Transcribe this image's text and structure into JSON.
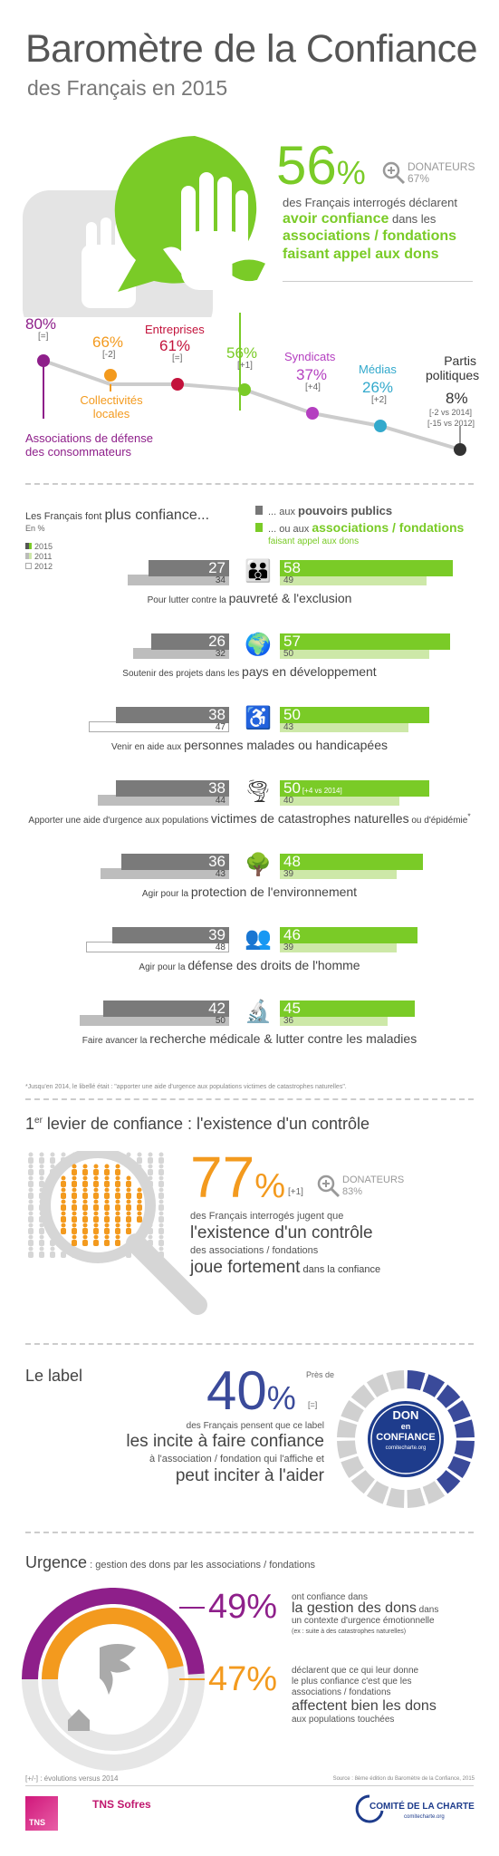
{
  "header": {
    "title": "Baromètre de la Confiance",
    "subtitle": "des Français en 2015"
  },
  "colors": {
    "green": "#7acb27",
    "gray_dark": "#7a7a7a",
    "gray_light": "#bdbdbd",
    "purple": "#8e1f8a",
    "orange": "#f39a1e",
    "red": "#c3123b",
    "magenta": "#b43fc0",
    "cyan": "#33a9cc",
    "blue": "#3a4a9a"
  },
  "intro": {
    "percent": "56",
    "percent_sign": "%",
    "donateurs_label": "DONATEURS",
    "donateurs_value": "67%",
    "line1": "des Français interrogés déclarent",
    "line2a": "avoir confiance",
    "line2b": " dans les",
    "line3": "associations / fondations",
    "line4": "faisant appel aux dons"
  },
  "trust_line": [
    {
      "value": "80%",
      "change": "[=]",
      "label1": "Associations de défense",
      "label2": "des consommateurs"
    },
    {
      "value": "66%",
      "change": "[-2]",
      "label1": "Collectivités",
      "label2": "locales"
    },
    {
      "value": "61%",
      "change": "[=]",
      "label1": "Entreprises",
      "label2": ""
    },
    {
      "value": "56%",
      "change": "[+1]",
      "label1": "",
      "label2": ""
    },
    {
      "value": "37%",
      "change": "[+4]",
      "label1": "Syndicats",
      "label2": ""
    },
    {
      "value": "26%",
      "change": "[+2]",
      "label1": "Médias",
      "label2": ""
    },
    {
      "value": "8%",
      "change": "[-2 vs 2014]",
      "change2": "[-15 vs 2012]",
      "label1": "Partis",
      "label2": "politiques"
    }
  ],
  "section2": {
    "heading_a": "Les Français font ",
    "heading_b": "plus confiance...",
    "unit": "En %",
    "legend_2015": "2015",
    "legend_2011": "2011",
    "legend_2012": "2012",
    "pub_a": "... aux ",
    "pub_b": "pouvoirs publics",
    "asso_a": "... ou aux ",
    "asso_b": "associations / fondations",
    "asso_c": "faisant appel aux dons",
    "footnote": "*Jusqu'en 2014, le libellé était : \"apporter une aide d'urgence aux populations victimes de catastrophes naturelles\"."
  },
  "chart_data": {
    "type": "bar",
    "title": "Les Français font plus confiance...",
    "unit": "En %",
    "categories": [
      "Pour lutter contre la pauvreté & l'exclusion",
      "Soutenir des projets dans les pays en développement",
      "Venir en aide aux personnes malades ou handicapées",
      "Apporter une aide d'urgence aux populations victimes de catastrophes naturelles ou d'épidémie*",
      "Agir pour la protection de l'environnement",
      "Agir pour la défense des droits de l'homme",
      "Faire avancer la recherche médicale & lutter contre les maladies"
    ],
    "series": [
      {
        "name": "pouvoirs publics 2015",
        "values": [
          27,
          26,
          38,
          38,
          36,
          39,
          42
        ]
      },
      {
        "name": "pouvoirs publics 2011/2012",
        "values": [
          34,
          32,
          47,
          44,
          43,
          48,
          50
        ]
      },
      {
        "name": "associations / fondations 2015",
        "values": [
          58,
          57,
          50,
          50,
          48,
          46,
          45
        ]
      },
      {
        "name": "associations / fondations 2011/2012",
        "values": [
          49,
          50,
          43,
          40,
          39,
          39,
          36
        ]
      }
    ]
  },
  "bar_rows": [
    {
      "pre": "Pour lutter contre la ",
      "big": "pauvreté & l'exclusion",
      "post": "",
      "pub": "27",
      "pub_old": "34",
      "asso": "58",
      "asso_old": "49",
      "note": ""
    },
    {
      "pre": "Soutenir des projets dans les ",
      "big": "pays en développement",
      "post": "",
      "pub": "26",
      "pub_old": "32",
      "asso": "57",
      "asso_old": "50",
      "note": ""
    },
    {
      "pre": "Venir en aide aux ",
      "big": "personnes malades ou handicapées",
      "post": "",
      "pub": "38",
      "pub_old": "47",
      "asso": "50",
      "asso_old": "43",
      "note": ""
    },
    {
      "pre": "Apporter une aide d'urgence aux populations ",
      "big": "victimes de catastrophes naturelles",
      "post": " ou d'épidémie",
      "star": "*",
      "pub": "38",
      "pub_old": "44",
      "asso": "50",
      "asso_old": "40",
      "note": "[+4 vs 2014]"
    },
    {
      "pre": "Agir pour la ",
      "big": "protection de l'environnement",
      "post": "",
      "pub": "36",
      "pub_old": "43",
      "asso": "48",
      "asso_old": "39",
      "note": ""
    },
    {
      "pre": "Agir pour la ",
      "big": "défense des droits de l'homme",
      "post": "",
      "pub": "39",
      "pub_old": "48",
      "asso": "46",
      "asso_old": "39",
      "note": ""
    },
    {
      "pre": "Faire avancer la ",
      "big": "recherche médicale & lutter contre les maladies",
      "post": "",
      "pub": "42",
      "pub_old": "50",
      "asso": "45",
      "asso_old": "36",
      "note": ""
    }
  ],
  "levier": {
    "heading_sup": "er",
    "heading_a": "1",
    "heading_b": " levier de confiance : l'existence d'un contrôle",
    "percent": "77",
    "percent_sign": "%",
    "change": "[+1]",
    "donateurs_label": "DONATEURS",
    "donateurs_value": "83%",
    "line1": "des Français interrogés jugent que",
    "line2": "l'existence d'un contrôle",
    "line3": "des associations / fondations",
    "line4a": "joue fortement",
    "line4b": " dans la confiance"
  },
  "label": {
    "heading": "Le label",
    "percent": "40",
    "percent_sign": "%",
    "pres_de": "Près de",
    "change": "[=]",
    "line1": "des Français pensent que ce label",
    "line2": "les incite à faire confiance",
    "line3": "à l'association / fondation qui l'affiche et",
    "line4": "peut inciter à l'aider",
    "logo_line1": "DON",
    "logo_line2": "en",
    "logo_line3": "CONFIANCE",
    "logo_line4": "comitecharte.org"
  },
  "urgence": {
    "heading_a": "Urgence",
    "heading_b": " : gestion des dons par les associations / fondations",
    "p1_value": "49%",
    "p1_line1": "ont confiance dans",
    "p1_line2a": "la gestion des dons",
    "p1_line2b": " dans",
    "p1_line3": "un contexte d'urgence émotionnelle",
    "p1_line4": "(ex : suite à des catastrophes naturelles)",
    "p2_value": "47%",
    "p2_line1": "déclarent que ce qui leur donne",
    "p2_line2": "le plus confiance c'est que les",
    "p2_line3": "associations / fondations",
    "p2_line4": "affectent bien les dons",
    "p2_line5": "aux populations touchées"
  },
  "footer": {
    "evolutions": "[+/-] : évolutions versus 2014",
    "source": "Source : 8ème édition du Baromètre de la Confiance, 2015",
    "tns": "TNS",
    "tns_sofres": "TNS Sofres",
    "comite": "COMITÉ DE LA CHARTE",
    "comite_url": "comitecharte.org"
  }
}
